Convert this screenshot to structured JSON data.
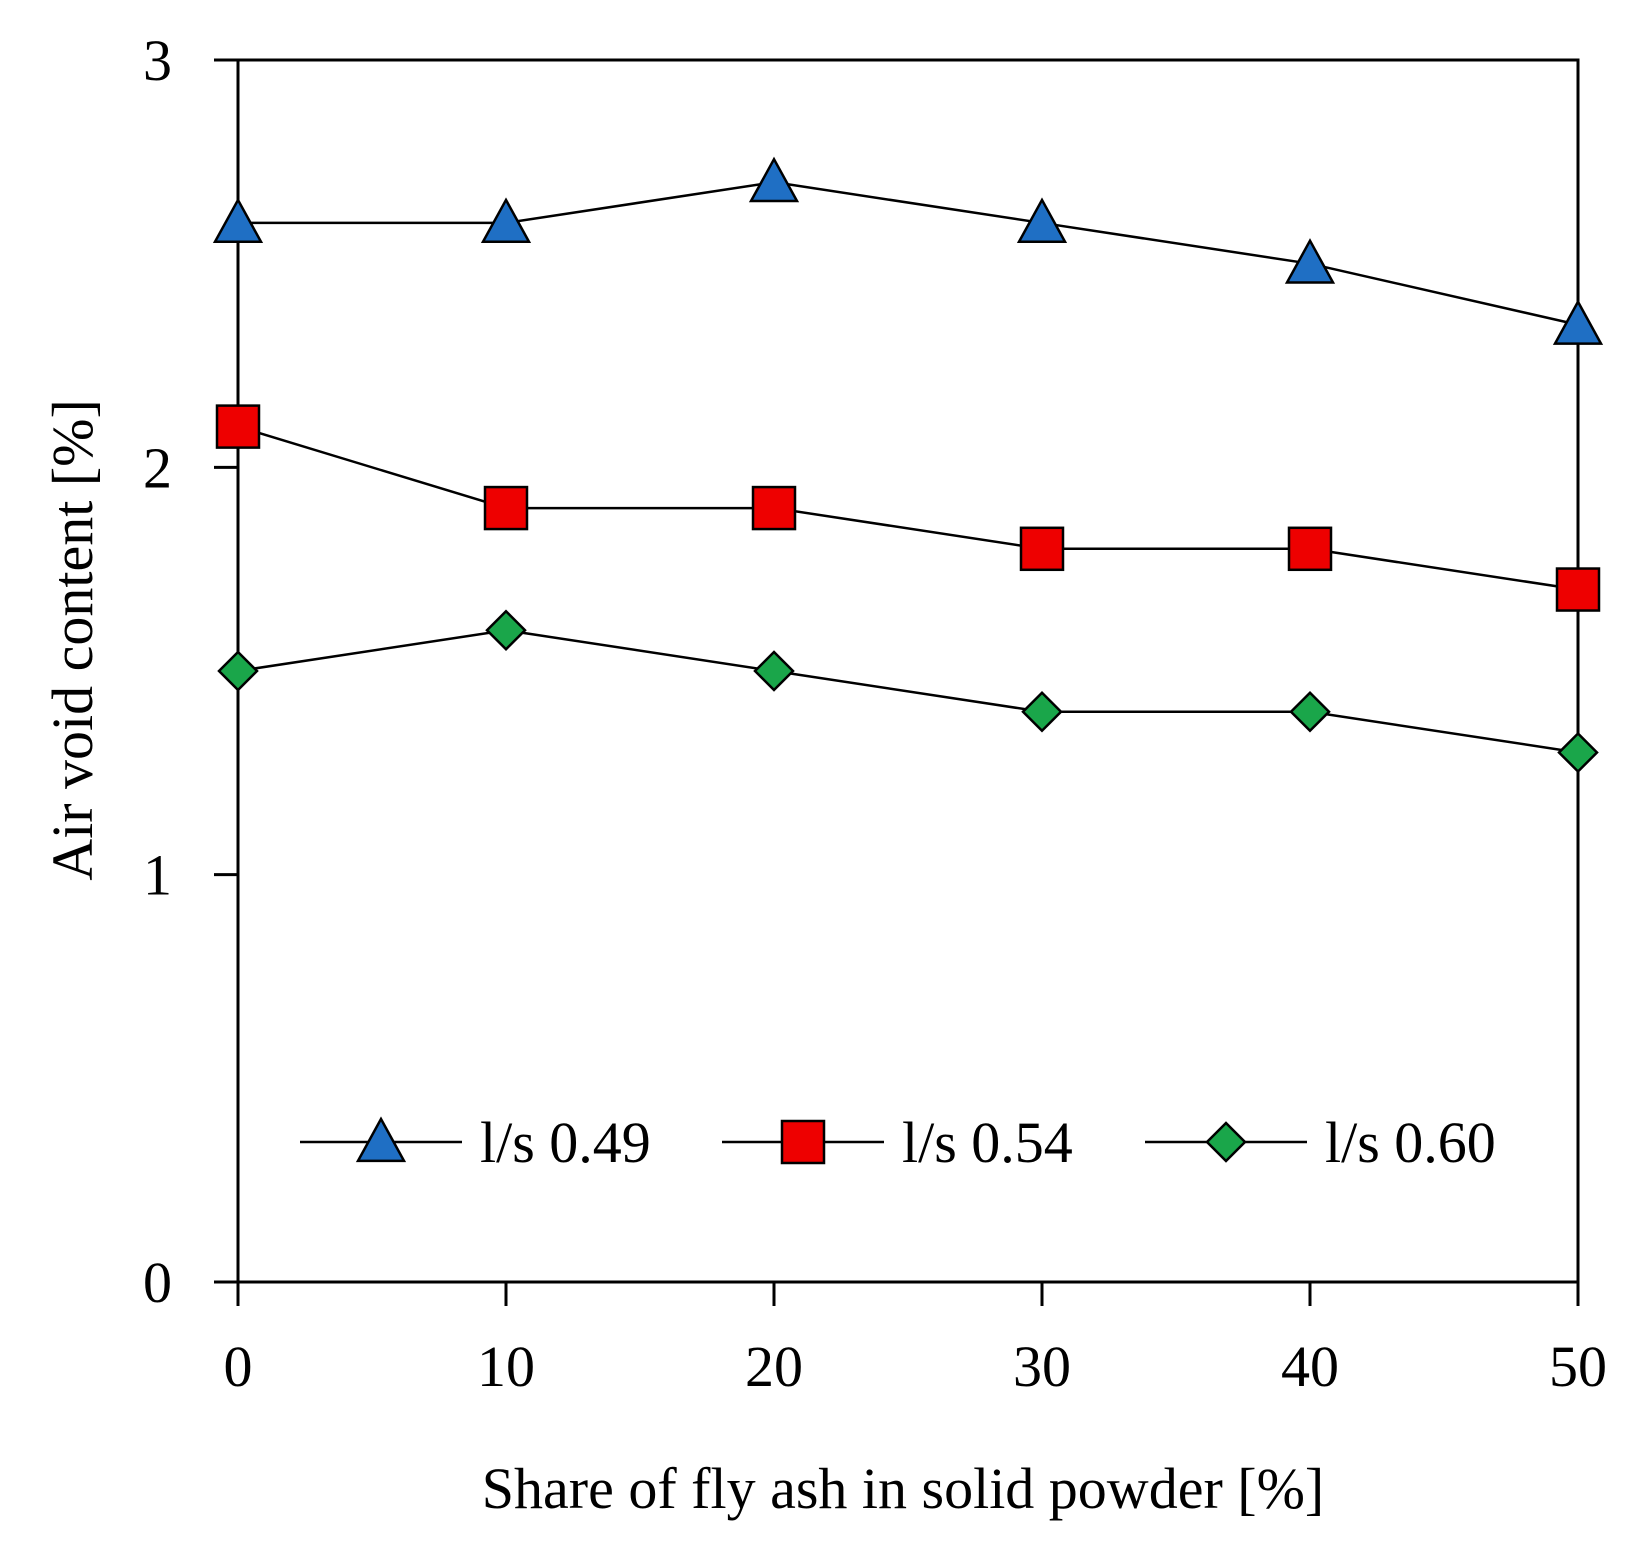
{
  "chart_data": {
    "type": "line",
    "title": "",
    "xlabel": "Share of fly ash in solid powder [%]",
    "ylabel": "Air void content [%]",
    "x": [
      0,
      10,
      20,
      30,
      40,
      50
    ],
    "x_ticks": [
      "0",
      "10",
      "20",
      "30",
      "40",
      "50"
    ],
    "y_ticks": [
      "0",
      "1",
      "2",
      "3"
    ],
    "xlim": [
      0,
      50
    ],
    "ylim": [
      0,
      3
    ],
    "grid": false,
    "legend_position": "bottom-inside",
    "series": [
      {
        "name": "l/s 0.49",
        "marker": "triangle",
        "color": "#1f6fc4",
        "values": [
          2.6,
          2.6,
          2.7,
          2.6,
          2.5,
          2.35
        ]
      },
      {
        "name": "l/s 0.54",
        "marker": "square",
        "color": "#ee0000",
        "values": [
          2.1,
          1.9,
          1.9,
          1.8,
          1.8,
          1.7
        ]
      },
      {
        "name": "l/s 0.60",
        "marker": "diamond",
        "color": "#1aa64a",
        "values": [
          1.5,
          1.6,
          1.5,
          1.4,
          1.4,
          1.3
        ]
      }
    ]
  }
}
